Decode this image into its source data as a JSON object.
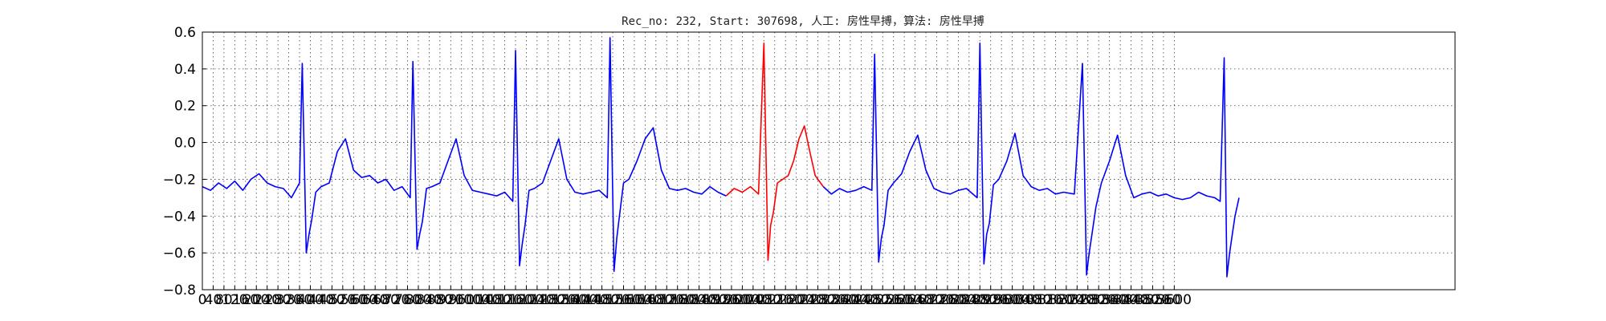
{
  "chart_data": {
    "type": "line",
    "title": "Rec_no: 232, Start: 307698, 人工: 房性早搏，算法: 房性早搏",
    "xlabel": "",
    "ylabel": "",
    "xlim": [
      0,
      4640
    ],
    "ylim": [
      -0.8,
      0.6
    ],
    "grid": true,
    "y_ticks": [
      -0.8,
      -0.6,
      -0.4,
      -0.2,
      0.0,
      0.2,
      0.4,
      0.6
    ],
    "y_tick_labels": [
      "−0.8",
      "−0.6",
      "−0.4",
      "−0.2",
      "0.0",
      "0.2",
      "0.4",
      "0.6"
    ],
    "x_tick_step": 40,
    "x_tick_max": 3600,
    "series": [
      {
        "color": "#0000ff",
        "x": [
          0,
          30,
          60,
          90,
          120,
          150,
          180,
          210,
          240,
          270,
          300,
          330,
          360,
          370,
          385,
          395,
          405,
          420,
          440,
          470,
          500,
          530,
          560,
          590,
          620,
          650,
          680,
          710,
          740,
          770,
          780,
          795,
          805,
          815,
          830,
          850,
          880,
          910,
          940,
          970,
          1000,
          1030,
          1060,
          1090,
          1120,
          1150,
          1160,
          1175,
          1185,
          1195,
          1210,
          1230,
          1260,
          1290,
          1320,
          1350,
          1380,
          1410,
          1440,
          1470,
          1500,
          1510,
          1525,
          1535,
          1545,
          1560,
          1580,
          1610,
          1640,
          1670,
          1700,
          1730,
          1760,
          1790,
          1820,
          1850,
          1880,
          1910,
          1940
        ],
        "y": [
          -0.24,
          -0.26,
          -0.22,
          -0.25,
          -0.21,
          -0.26,
          -0.2,
          -0.17,
          -0.22,
          -0.24,
          -0.25,
          -0.3,
          -0.22,
          0.43,
          -0.6,
          -0.5,
          -0.42,
          -0.27,
          -0.24,
          -0.22,
          -0.05,
          0.02,
          -0.15,
          -0.19,
          -0.18,
          -0.22,
          -0.2,
          -0.26,
          -0.24,
          -0.3,
          0.44,
          -0.58,
          -0.5,
          -0.43,
          -0.25,
          -0.24,
          -0.22,
          -0.1,
          0.02,
          -0.18,
          -0.26,
          -0.27,
          -0.28,
          -0.29,
          -0.27,
          -0.32,
          0.5,
          -0.67,
          -0.55,
          -0.45,
          -0.26,
          -0.25,
          -0.22,
          -0.1,
          0.02,
          -0.2,
          -0.27,
          -0.28,
          -0.27,
          -0.26,
          -0.3,
          0.57,
          -0.7,
          -0.52,
          -0.4,
          -0.22,
          -0.2,
          -0.1,
          0.02,
          0.08,
          -0.15,
          -0.25,
          -0.26,
          -0.25,
          -0.27,
          -0.28,
          -0.24,
          -0.27,
          -0.29
        ]
      },
      {
        "color": "#ff0000",
        "x": [
          1940,
          1970,
          2000,
          2030,
          2060,
          2080,
          2095,
          2105,
          2115,
          2130,
          2150,
          2170,
          2190,
          2210,
          2230,
          2250,
          2270,
          2290,
          2300
        ],
        "y": [
          -0.29,
          -0.25,
          -0.27,
          -0.24,
          -0.28,
          0.54,
          -0.64,
          -0.45,
          -0.38,
          -0.22,
          -0.2,
          -0.18,
          -0.1,
          0.02,
          0.09,
          -0.05,
          -0.18,
          -0.22,
          -0.24
        ]
      },
      {
        "color": "#0000ff",
        "x": [
          2300,
          2330,
          2360,
          2390,
          2420,
          2450,
          2480,
          2490,
          2505,
          2515,
          2525,
          2540,
          2560,
          2590,
          2620,
          2650,
          2680,
          2710,
          2740,
          2770,
          2800,
          2830,
          2870,
          2880,
          2895,
          2905,
          2915,
          2930,
          2950,
          2980,
          3010,
          3040,
          3070,
          3100,
          3130,
          3160,
          3190,
          3230,
          3260,
          3275,
          3285,
          3295,
          3310,
          3330,
          3360,
          3390,
          3420,
          3450,
          3480,
          3510,
          3540,
          3570,
          3600,
          3630,
          3660,
          3690,
          3720,
          3750,
          3770,
          3785,
          3795,
          3805,
          3815,
          3825,
          3840
        ],
        "y": [
          -0.24,
          -0.28,
          -0.25,
          -0.27,
          -0.26,
          -0.24,
          -0.26,
          0.48,
          -0.65,
          -0.52,
          -0.45,
          -0.26,
          -0.22,
          -0.17,
          -0.05,
          0.04,
          -0.15,
          -0.25,
          -0.27,
          -0.28,
          -0.26,
          -0.25,
          -0.3,
          0.54,
          -0.66,
          -0.5,
          -0.44,
          -0.23,
          -0.2,
          -0.1,
          0.05,
          -0.18,
          -0.24,
          -0.26,
          -0.25,
          -0.28,
          -0.27,
          -0.28,
          0.43,
          -0.72,
          -0.6,
          -0.5,
          -0.35,
          -0.22,
          -0.1,
          0.04,
          -0.18,
          -0.3,
          -0.28,
          -0.27,
          -0.29,
          -0.28,
          -0.3,
          -0.31,
          -0.3,
          -0.27,
          -0.29,
          -0.3,
          -0.32,
          0.46,
          -0.73,
          -0.6,
          -0.5,
          -0.4,
          -0.3
        ]
      }
    ]
  }
}
